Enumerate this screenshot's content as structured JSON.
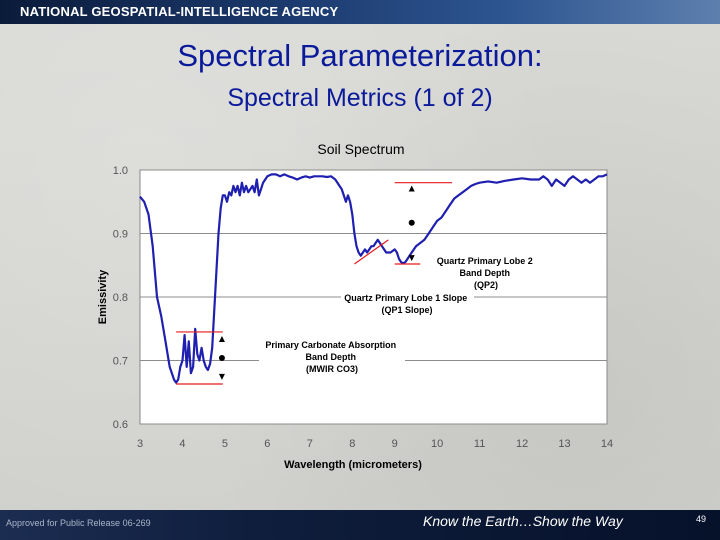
{
  "header": {
    "agency": "NATIONAL GEOSPATIAL-INTELLIGENCE AGENCY"
  },
  "slide": {
    "title": "Spectral Parameterization:",
    "subtitle": "Spectral Metrics (1 of 2)"
  },
  "chart_data": {
    "type": "line",
    "title": "Soil Spectrum",
    "xlabel": "Wavelength (micrometers)",
    "ylabel": "Emissivity",
    "xlim": [
      3,
      14
    ],
    "ylim": [
      0.6,
      1.0
    ],
    "xticks": [
      3,
      4,
      5,
      6,
      7,
      8,
      9,
      10,
      11,
      12,
      13,
      14
    ],
    "xtick_labels": [
      "3",
      "4",
      "5",
      "6",
      "7",
      "8",
      "9",
      "10",
      "11",
      "12",
      "13",
      "14"
    ],
    "yticks": [
      0.6,
      0.7,
      0.8,
      0.9,
      1.0
    ],
    "ytick_labels": [
      "0.6",
      "0.7",
      "0.8",
      "0.9",
      "1.0"
    ],
    "grid": "horizontal",
    "series": [
      {
        "color": "#1f1fb0",
        "points": [
          [
            3.0,
            0.958
          ],
          [
            3.1,
            0.95
          ],
          [
            3.2,
            0.93
          ],
          [
            3.3,
            0.88
          ],
          [
            3.4,
            0.8
          ],
          [
            3.5,
            0.77
          ],
          [
            3.6,
            0.73
          ],
          [
            3.7,
            0.69
          ],
          [
            3.8,
            0.67
          ],
          [
            3.85,
            0.665
          ],
          [
            3.9,
            0.67
          ],
          [
            3.95,
            0.69
          ],
          [
            4.0,
            0.7
          ],
          [
            4.05,
            0.74
          ],
          [
            4.1,
            0.69
          ],
          [
            4.15,
            0.73
          ],
          [
            4.2,
            0.68
          ],
          [
            4.25,
            0.69
          ],
          [
            4.3,
            0.75
          ],
          [
            4.35,
            0.71
          ],
          [
            4.4,
            0.7
          ],
          [
            4.45,
            0.72
          ],
          [
            4.5,
            0.7
          ],
          [
            4.55,
            0.69
          ],
          [
            4.6,
            0.685
          ],
          [
            4.65,
            0.695
          ],
          [
            4.7,
            0.72
          ],
          [
            4.75,
            0.78
          ],
          [
            4.8,
            0.84
          ],
          [
            4.85,
            0.9
          ],
          [
            4.9,
            0.94
          ],
          [
            4.95,
            0.96
          ],
          [
            5.0,
            0.96
          ],
          [
            5.05,
            0.95
          ],
          [
            5.1,
            0.965
          ],
          [
            5.15,
            0.96
          ],
          [
            5.2,
            0.975
          ],
          [
            5.25,
            0.965
          ],
          [
            5.3,
            0.975
          ],
          [
            5.35,
            0.96
          ],
          [
            5.4,
            0.98
          ],
          [
            5.45,
            0.965
          ],
          [
            5.5,
            0.975
          ],
          [
            5.55,
            0.965
          ],
          [
            5.6,
            0.97
          ],
          [
            5.65,
            0.975
          ],
          [
            5.7,
            0.965
          ],
          [
            5.75,
            0.985
          ],
          [
            5.8,
            0.96
          ],
          [
            5.85,
            0.97
          ],
          [
            5.9,
            0.98
          ],
          [
            6.0,
            0.99
          ],
          [
            6.1,
            0.993
          ],
          [
            6.2,
            0.993
          ],
          [
            6.3,
            0.99
          ],
          [
            6.4,
            0.993
          ],
          [
            6.5,
            0.99
          ],
          [
            6.6,
            0.988
          ],
          [
            6.7,
            0.985
          ],
          [
            6.8,
            0.988
          ],
          [
            6.9,
            0.99
          ],
          [
            7.0,
            0.988
          ],
          [
            7.1,
            0.99
          ],
          [
            7.2,
            0.99
          ],
          [
            7.3,
            0.99
          ],
          [
            7.4,
            0.989
          ],
          [
            7.5,
            0.99
          ],
          [
            7.6,
            0.985
          ],
          [
            7.7,
            0.975
          ],
          [
            7.75,
            0.97
          ],
          [
            7.8,
            0.96
          ],
          [
            7.85,
            0.95
          ],
          [
            7.9,
            0.96
          ],
          [
            7.95,
            0.95
          ],
          [
            8.0,
            0.93
          ],
          [
            8.05,
            0.9
          ],
          [
            8.1,
            0.88
          ],
          [
            8.15,
            0.87
          ],
          [
            8.2,
            0.865
          ],
          [
            8.25,
            0.87
          ],
          [
            8.3,
            0.875
          ],
          [
            8.35,
            0.87
          ],
          [
            8.4,
            0.875
          ],
          [
            8.45,
            0.88
          ],
          [
            8.5,
            0.88
          ],
          [
            8.55,
            0.885
          ],
          [
            8.6,
            0.89
          ],
          [
            8.65,
            0.885
          ],
          [
            8.7,
            0.88
          ],
          [
            8.75,
            0.875
          ],
          [
            8.8,
            0.87
          ],
          [
            8.9,
            0.87
          ],
          [
            9.0,
            0.875
          ],
          [
            9.05,
            0.87
          ],
          [
            9.1,
            0.86
          ],
          [
            9.15,
            0.855
          ],
          [
            9.2,
            0.853
          ],
          [
            9.25,
            0.855
          ],
          [
            9.3,
            0.86
          ],
          [
            9.4,
            0.87
          ],
          [
            9.5,
            0.88
          ],
          [
            9.6,
            0.885
          ],
          [
            9.7,
            0.89
          ],
          [
            9.8,
            0.9
          ],
          [
            9.9,
            0.91
          ],
          [
            10.0,
            0.92
          ],
          [
            10.1,
            0.925
          ],
          [
            10.2,
            0.935
          ],
          [
            10.3,
            0.945
          ],
          [
            10.4,
            0.955
          ],
          [
            10.5,
            0.96
          ],
          [
            10.6,
            0.965
          ],
          [
            10.7,
            0.97
          ],
          [
            10.8,
            0.975
          ],
          [
            10.9,
            0.978
          ],
          [
            11.0,
            0.98
          ],
          [
            11.2,
            0.982
          ],
          [
            11.4,
            0.98
          ],
          [
            11.6,
            0.983
          ],
          [
            11.8,
            0.985
          ],
          [
            12.0,
            0.987
          ],
          [
            12.2,
            0.985
          ],
          [
            12.4,
            0.985
          ],
          [
            12.5,
            0.99
          ],
          [
            12.6,
            0.985
          ],
          [
            12.7,
            0.975
          ],
          [
            12.8,
            0.985
          ],
          [
            13.0,
            0.975
          ],
          [
            13.1,
            0.985
          ],
          [
            13.2,
            0.99
          ],
          [
            13.3,
            0.985
          ],
          [
            13.4,
            0.98
          ],
          [
            13.5,
            0.985
          ],
          [
            13.6,
            0.98
          ],
          [
            13.7,
            0.985
          ],
          [
            13.8,
            0.99
          ],
          [
            13.9,
            0.99
          ],
          [
            14.0,
            0.993
          ]
        ]
      }
    ],
    "annotation_lines": [
      {
        "name": "carbonate-top-line",
        "color": "#e41a1c",
        "x1": 3.85,
        "y1": 0.745,
        "x2": 4.95,
        "y2": 0.745
      },
      {
        "name": "carbonate-bottom-line",
        "color": "#e41a1c",
        "x1": 3.85,
        "y1": 0.663,
        "x2": 4.95,
        "y2": 0.663
      },
      {
        "name": "qp2-top-line",
        "color": "#e41a1c",
        "x1": 9.0,
        "y1": 0.98,
        "x2": 10.35,
        "y2": 0.98
      },
      {
        "name": "qp2-bottom-line",
        "color": "#e41a1c",
        "x1": 9.0,
        "y1": 0.852,
        "x2": 9.6,
        "y2": 0.852
      },
      {
        "name": "qp1-slope-line",
        "color": "#e41a1c",
        "x1": 8.05,
        "y1": 0.852,
        "x2": 8.85,
        "y2": 0.89
      }
    ],
    "markers": [
      {
        "name": "carbonate-up-triangle",
        "shape": "triangle-up",
        "x": 4.93,
        "y": 0.733
      },
      {
        "name": "carbonate-dot",
        "shape": "circle",
        "x": 4.93,
        "y": 0.704
      },
      {
        "name": "carbonate-down-triangle",
        "shape": "triangle-down",
        "x": 4.93,
        "y": 0.675
      },
      {
        "name": "qp2-up-triangle",
        "shape": "triangle-up",
        "x": 9.4,
        "y": 0.97
      },
      {
        "name": "qp2-dot",
        "shape": "circle",
        "x": 9.4,
        "y": 0.917
      },
      {
        "name": "qp2-down-triangle",
        "shape": "triangle-down",
        "x": 9.4,
        "y": 0.862
      }
    ],
    "annotations": [
      {
        "name": "carbonate-label",
        "lines": [
          "Primary Carbonate Absorption",
          "Band Depth",
          "(MWIR CO3)"
        ]
      },
      {
        "name": "qp2-label",
        "lines": [
          "Quartz Primary Lobe 2",
          "Band Depth",
          "(QP2)"
        ]
      },
      {
        "name": "qp1-label",
        "lines": [
          "Quartz Primary Lobe 1 Slope",
          "(QP1 Slope)"
        ]
      }
    ]
  },
  "footer": {
    "release": "Approved for Public Release 06-269",
    "tagline": "Know the Earth…Show the Way",
    "page": "49"
  }
}
